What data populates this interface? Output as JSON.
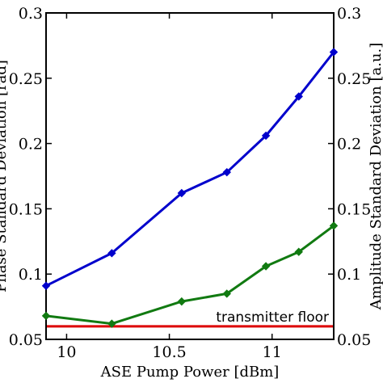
{
  "chart_data": {
    "type": "line",
    "xlabel": "ASE Pump Power [dBm]",
    "ylabel_left": "Phase Standard Deviation [rad]",
    "ylabel_right": "Amplitude Standard Deviation [a.u.]",
    "xlim": [
      9.9,
      11.3
    ],
    "ylim": [
      0.05,
      0.3
    ],
    "x_ticks": [
      10,
      10.5,
      11
    ],
    "x_tick_labels": [
      "10",
      "10.5",
      "11"
    ],
    "y_ticks": [
      0.05,
      0.1,
      0.15,
      0.2,
      0.25,
      0.3
    ],
    "y_tick_labels": [
      "0.05",
      "0.1",
      "0.15",
      "0.2",
      "0.25",
      "0.3"
    ],
    "grid": false,
    "series": [
      {
        "color": "#0000cc",
        "marker": "diamond",
        "x": [
          9.9,
          10.22,
          10.56,
          10.78,
          10.97,
          11.13,
          11.3
        ],
        "y": [
          0.091,
          0.116,
          0.162,
          0.178,
          0.206,
          0.236,
          0.27
        ]
      },
      {
        "color": "#117a11",
        "marker": "diamond",
        "x": [
          9.9,
          10.22,
          10.56,
          10.78,
          10.97,
          11.13,
          11.3
        ],
        "y": [
          0.068,
          0.062,
          0.079,
          0.085,
          0.106,
          0.117,
          0.137
        ]
      }
    ],
    "reference_line": {
      "label": "transmitter floor",
      "y": 0.06,
      "color": "#dd0000"
    }
  }
}
